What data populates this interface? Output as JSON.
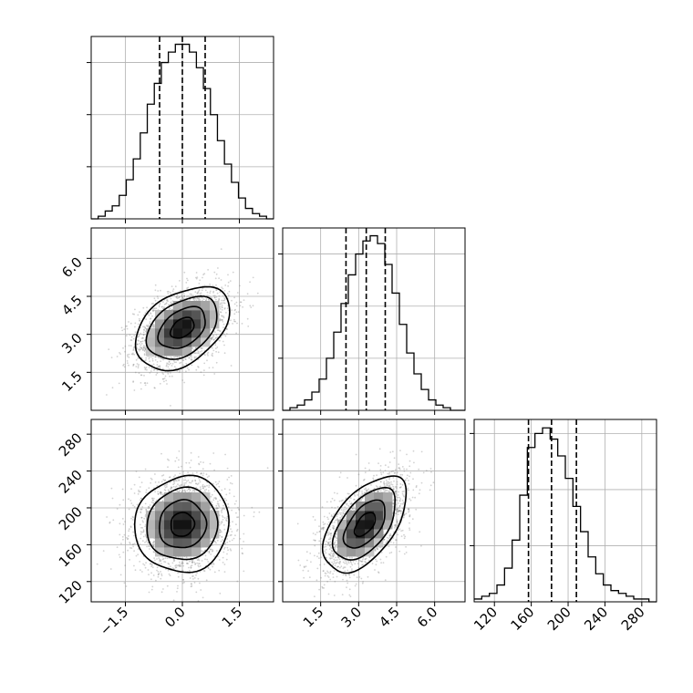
{
  "figure": {
    "background": "#ffffff",
    "axis_color": "#000000",
    "grid_color": "#b0b0b0",
    "hist_color": "#000000",
    "scatter_color": "#7f7f7f"
  },
  "chart_data": {
    "type": "corner",
    "grid": true,
    "params": [
      {
        "range": [
          -2.4,
          2.4
        ],
        "ticks": [
          -1.5,
          0.0,
          1.5
        ],
        "tick_labels": [
          "−1.5",
          "0.0",
          "1.5"
        ],
        "quantiles": [
          -0.6,
          0.0,
          0.6
        ],
        "hist_bins": [
          -2.4,
          2.4
        ],
        "hist_heights": [
          0,
          1,
          3,
          5,
          9,
          15,
          23,
          33,
          44,
          52,
          60,
          64,
          67,
          67,
          64,
          58,
          50,
          40,
          30,
          21,
          14,
          8,
          4,
          2,
          1,
          0
        ],
        "hist_ylim": [
          0,
          70
        ],
        "hist_yticks": [
          20,
          40,
          60
        ]
      },
      {
        "range": [
          0.0,
          7.2
        ],
        "ticks": [
          1.5,
          3.0,
          4.5,
          6.0
        ],
        "tick_labels": [
          "1.5",
          "3.0",
          "4.5",
          "6.0"
        ],
        "quantiles": [
          2.5,
          3.3,
          4.05
        ],
        "hist_bins": [
          0.0,
          7.2
        ],
        "hist_heights": [
          0,
          1,
          2,
          4,
          7,
          12,
          20,
          30,
          41,
          52,
          60,
          65,
          67,
          64,
          56,
          45,
          33,
          22,
          14,
          8,
          4,
          2,
          1,
          0,
          0
        ],
        "hist_ylim": [
          0,
          70
        ],
        "hist_yticks": [
          20,
          40,
          60
        ]
      },
      {
        "range": [
          98,
          296
        ],
        "ticks": [
          120,
          160,
          200,
          240,
          280
        ],
        "tick_labels": [
          "120",
          "160",
          "200",
          "240",
          "280"
        ],
        "quantiles": [
          157,
          182,
          209
        ],
        "hist_bins": [
          98,
          296
        ],
        "hist_heights": [
          1,
          2,
          3,
          6,
          12,
          22,
          38,
          55,
          60,
          62,
          58,
          52,
          44,
          34,
          25,
          16,
          10,
          6,
          4,
          3,
          2,
          1,
          1,
          0
        ],
        "hist_ylim": [
          0,
          65
        ],
        "hist_yticks": [
          20,
          40,
          60
        ]
      }
    ],
    "pairs": [
      {
        "x": 0,
        "y": 1,
        "mean": [
          0.0,
          3.25
        ],
        "std": [
          0.62,
          0.82
        ],
        "rho": 0.4
      },
      {
        "x": 0,
        "y": 2,
        "mean": [
          0.0,
          182
        ],
        "std": [
          0.62,
          26
        ],
        "rho": 0.05
      },
      {
        "x": 1,
        "y": 2,
        "mean": [
          3.25,
          182
        ],
        "std": [
          0.82,
          26
        ],
        "rho": 0.55
      }
    ]
  }
}
